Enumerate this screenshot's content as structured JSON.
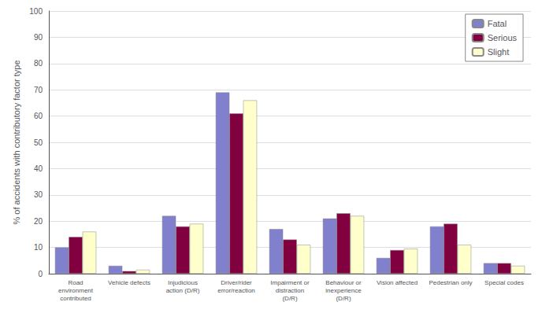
{
  "chart_data": {
    "type": "bar",
    "categories": [
      "Road\nenvironment\ncontributed",
      "Vehicle defects",
      "Injudicious\naction (D/R)",
      "Driver/rider\nerror/reaction",
      "Impairment or\ndistraction\n(D/R)",
      "Behaviour or\ninexperience\n(D/R)",
      "Vision affected",
      "Pedestrian only",
      "Special codes"
    ],
    "series": [
      {
        "name": "Fatal",
        "color": "#8080cc",
        "values": [
          10,
          3,
          22,
          69,
          17,
          21,
          6,
          18,
          4
        ]
      },
      {
        "name": "Serious",
        "color": "#800040",
        "values": [
          14,
          1,
          18,
          61,
          13,
          23,
          9,
          19,
          4
        ]
      },
      {
        "name": "Slight",
        "color": "#ffffcc",
        "values": [
          16,
          1.5,
          19,
          66,
          11,
          22,
          9.5,
          11,
          3
        ]
      }
    ],
    "ylabel": "% of accidents with contributory factor type",
    "ylim": [
      0,
      100
    ],
    "yticks": [
      0,
      10,
      20,
      30,
      40,
      50,
      60,
      70,
      80,
      90,
      100
    ],
    "grid": true,
    "legend": "upper right"
  }
}
